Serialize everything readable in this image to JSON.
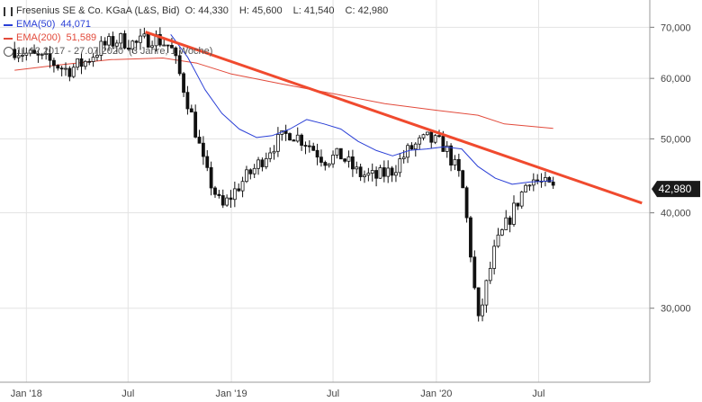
{
  "chart_data": {
    "type": "candlestick",
    "title": "Fresenius SE & Co. KGaA (L&S, Bid)",
    "ohlc": {
      "open": "44,330",
      "high": "45,600",
      "low": "41,540",
      "close": "42,980"
    },
    "period": "11.12.2017 - 27.07.2020",
    "period_note": "(3 Jahre, 1 Woche)",
    "last_price_label": "42,980",
    "y_scale": "log",
    "ylim": [
      24,
      76
    ],
    "y_ticks": [
      30,
      40,
      50,
      60,
      70
    ],
    "y_tick_labels": [
      "30,000",
      "40,000",
      "50,000",
      "60,000",
      "70,000"
    ],
    "x_tick_labels": [
      {
        "label": "Jan '18",
        "date": "2018-01-01"
      },
      {
        "label": "Jul",
        "date": "2018-07-01"
      },
      {
        "label": "Jan '19",
        "date": "2019-01-01"
      },
      {
        "label": "Jul",
        "date": "2019-07-01"
      },
      {
        "label": "Jan '20",
        "date": "2020-01-01"
      },
      {
        "label": "Jul",
        "date": "2020-07-01"
      }
    ],
    "grid": true,
    "series": [
      {
        "name": "EMA(50)",
        "legend_value": "44,071",
        "color": "#2a3fd6",
        "points": [
          [
            "2018-09-15",
            68.5
          ],
          [
            "2018-10-15",
            64.0
          ],
          [
            "2018-11-15",
            58.0
          ],
          [
            "2018-12-15",
            54.0
          ],
          [
            "2019-01-15",
            51.5
          ],
          [
            "2019-02-15",
            50.2
          ],
          [
            "2019-03-15",
            50.5
          ],
          [
            "2019-04-15",
            51.5
          ],
          [
            "2019-05-15",
            53.0
          ],
          [
            "2019-06-15",
            52.3
          ],
          [
            "2019-07-15",
            51.5
          ],
          [
            "2019-08-15",
            49.6
          ],
          [
            "2019-09-15",
            48.3
          ],
          [
            "2019-10-15",
            47.5
          ],
          [
            "2019-11-15",
            48.3
          ],
          [
            "2019-12-15",
            48.5
          ],
          [
            "2020-01-15",
            48.8
          ],
          [
            "2020-02-15",
            48.5
          ],
          [
            "2020-03-15",
            46.0
          ],
          [
            "2020-04-15",
            44.4
          ],
          [
            "2020-05-15",
            43.6
          ],
          [
            "2020-06-15",
            43.9
          ],
          [
            "2020-07-27",
            44.07
          ]
        ]
      },
      {
        "name": "EMA(200)",
        "legend_value": "51,589",
        "color": "#e24a3b",
        "points": [
          [
            "2017-12-11",
            61.5
          ],
          [
            "2018-03-01",
            62.5
          ],
          [
            "2018-06-01",
            63.5
          ],
          [
            "2018-09-01",
            63.8
          ],
          [
            "2018-11-01",
            62.8
          ],
          [
            "2019-01-01",
            60.8
          ],
          [
            "2019-04-01",
            59.0
          ],
          [
            "2019-07-01",
            57.3
          ],
          [
            "2019-10-01",
            55.6
          ],
          [
            "2020-01-01",
            54.5
          ],
          [
            "2020-03-15",
            53.7
          ],
          [
            "2020-05-01",
            52.3
          ],
          [
            "2020-07-27",
            51.6
          ]
        ]
      },
      {
        "name": "Trendlinie",
        "color": "#f04a2e",
        "points": [
          [
            "2018-08-01",
            69.0
          ],
          [
            "2021-01-01",
            41.2
          ]
        ]
      }
    ],
    "candles_weekly_close": [
      [
        "2017-12-11",
        65.5
      ],
      [
        "2018-01-15",
        64.0
      ],
      [
        "2018-02-15",
        63.0
      ],
      [
        "2018-03-15",
        61.5
      ],
      [
        "2018-04-15",
        63.0
      ],
      [
        "2018-05-15",
        66.0
      ],
      [
        "2018-06-15",
        67.5
      ],
      [
        "2018-07-15",
        66.5
      ],
      [
        "2018-08-15",
        68.0
      ],
      [
        "2018-09-15",
        66.0
      ],
      [
        "2018-10-15",
        56.0
      ],
      [
        "2018-11-15",
        45.5
      ],
      [
        "2018-12-15",
        40.5
      ],
      [
        "2019-01-15",
        43.5
      ],
      [
        "2019-02-15",
        46.0
      ],
      [
        "2019-03-15",
        49.0
      ],
      [
        "2019-04-15",
        51.0
      ],
      [
        "2019-05-15",
        49.5
      ],
      [
        "2019-06-15",
        47.0
      ],
      [
        "2019-07-15",
        47.5
      ],
      [
        "2019-08-15",
        45.0
      ],
      [
        "2019-09-15",
        44.5
      ],
      [
        "2019-10-15",
        45.5
      ],
      [
        "2019-11-15",
        48.5
      ],
      [
        "2019-12-15",
        50.0
      ],
      [
        "2020-01-15",
        49.0
      ],
      [
        "2020-02-15",
        44.0
      ],
      [
        "2020-03-15",
        28.5
      ],
      [
        "2020-04-15",
        36.0
      ],
      [
        "2020-05-15",
        40.0
      ],
      [
        "2020-06-15",
        44.5
      ],
      [
        "2020-07-27",
        42.98
      ]
    ]
  }
}
